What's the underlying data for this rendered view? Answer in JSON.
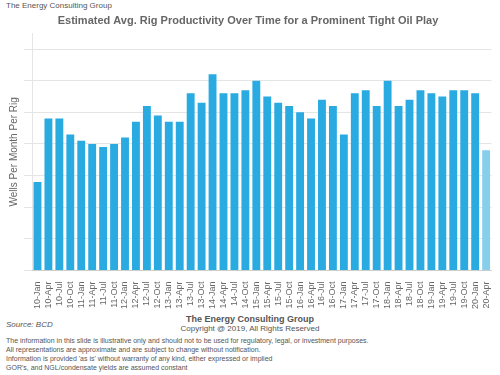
{
  "chart_data": {
    "type": "bar",
    "title": "Estimated Avg. Rig Productivity Over Time for a Prominent Tight Oil Play",
    "y_label": "Wells Per Month Per Rig",
    "annotations": [
      "The Energy Consulting Group",
      "Source: BCD",
      "The Energy Consulting Group",
      "Copyright @ 2019, All Rights Reserved",
      "The information in this slide is illustrative only and should not to be used for regulatory, legal, or investment purposes.\nAll representations are approximate and are subject to change without notification.\nInformation is provided 'as is' without warranty of any kind, either expressed or implied\nGOR's, and NGL/condensate yields are assumed constant"
    ],
    "categories": [
      "10-Jan",
      "10-Apr",
      "10-Jul",
      "10-Oct",
      "11-Jan",
      "11-Apr",
      "11-Jul",
      "11-Oct",
      "12-Jan",
      "12-Apr",
      "12-Jul",
      "12-Oct",
      "13-Jan",
      "13-Apr",
      "13-Jul",
      "13-Oct",
      "14-Jan",
      "14-Apr",
      "14-Jul",
      "14-Oct",
      "15-Jan",
      "15-Apr",
      "15-Jul",
      "15-Oct",
      "16-Jan",
      "16-Apr",
      "16-Jul",
      "16-Oct",
      "17-Jan",
      "17-Apr",
      "17-Jul",
      "17-Oct",
      "18-Jan",
      "18-Apr",
      "18-Jul",
      "18-Oct",
      "19-Jan",
      "19-Apr",
      "19-Jul",
      "19-Oct",
      "20-Jan",
      "20-Apr"
    ],
    "values": [
      0.28,
      0.48,
      0.48,
      0.43,
      0.41,
      0.4,
      0.39,
      0.4,
      0.42,
      0.47,
      0.52,
      0.49,
      0.47,
      0.47,
      0.56,
      0.53,
      0.62,
      0.56,
      0.56,
      0.57,
      0.6,
      0.55,
      0.53,
      0.52,
      0.5,
      0.48,
      0.54,
      0.52,
      0.43,
      0.56,
      0.57,
      0.52,
      0.6,
      0.52,
      0.54,
      0.57,
      0.56,
      0.55,
      0.57,
      0.57,
      0.56,
      0.38
    ],
    "colors": [
      "#29ABE2",
      "#29ABE2",
      "#29ABE2",
      "#29ABE2",
      "#29ABE2",
      "#29ABE2",
      "#29ABE2",
      "#29ABE2",
      "#29ABE2",
      "#29ABE2",
      "#29ABE2",
      "#29ABE2",
      "#29ABE2",
      "#29ABE2",
      "#29ABE2",
      "#29ABE2",
      "#29ABE2",
      "#29ABE2",
      "#29ABE2",
      "#29ABE2",
      "#29ABE2",
      "#29ABE2",
      "#29ABE2",
      "#29ABE2",
      "#29ABE2",
      "#29ABE2",
      "#29ABE2",
      "#29ABE2",
      "#29ABE2",
      "#29ABE2",
      "#29ABE2",
      "#29ABE2",
      "#29ABE2",
      "#29ABE2",
      "#29ABE2",
      "#29ABE2",
      "#29ABE2",
      "#29ABE2",
      "#29ABE2",
      "#29ABE2",
      "#29ABE2",
      "#87CEEB"
    ],
    "ylim": [
      0,
      0.75
    ],
    "yticks": [
      0.0,
      0.1,
      0.2,
      0.3,
      0.4,
      0.5,
      0.6,
      0.7
    ],
    "grid": true,
    "tick_labels": "x"
  }
}
